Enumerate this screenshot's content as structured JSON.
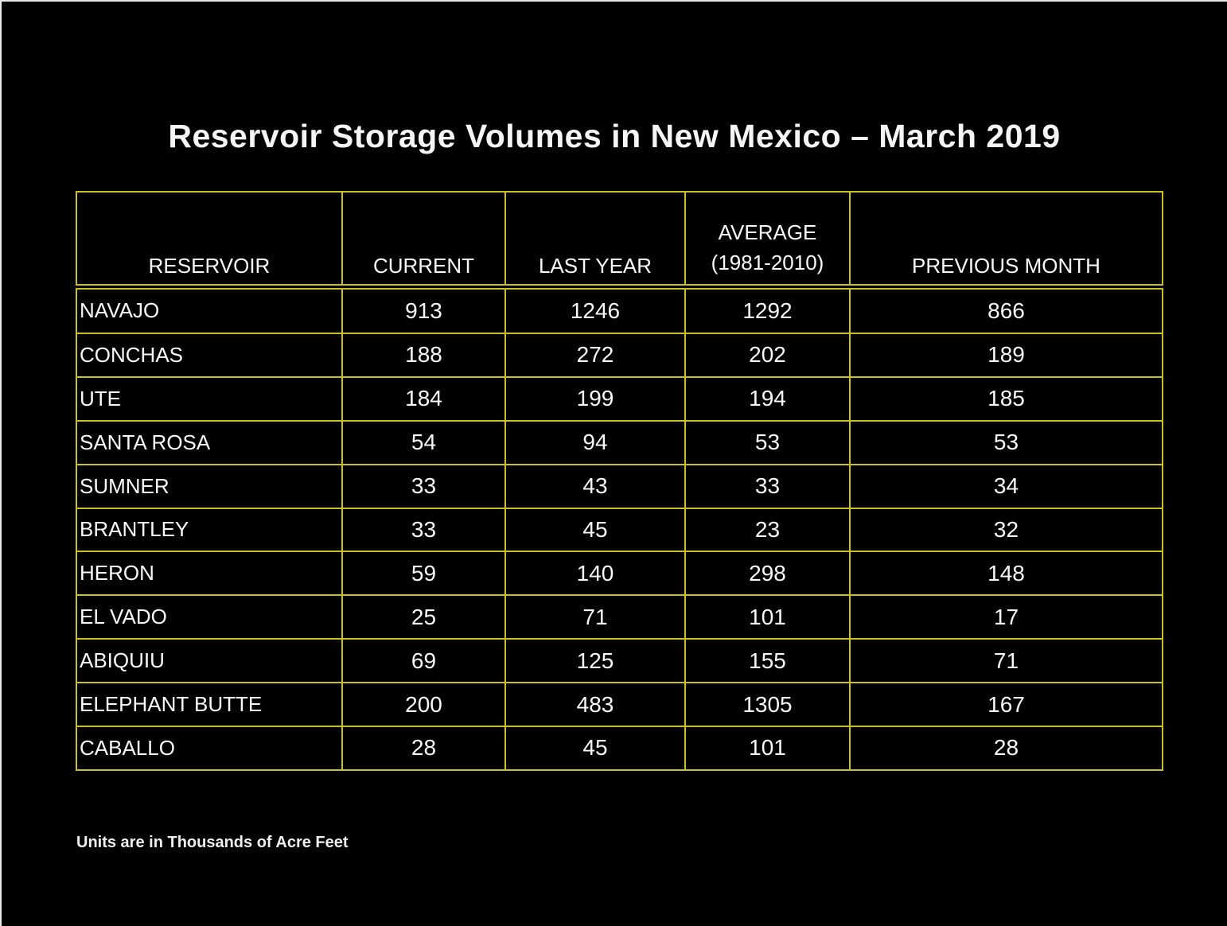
{
  "title": "Reservoir Storage Volumes in New Mexico – March 2019",
  "footnote": "Units are in Thousands of Acre Feet",
  "colors": {
    "background": "#000000",
    "text": "#fafafa",
    "table_border": "#c9c121"
  },
  "header": {
    "reservoir": "RESERVOIR",
    "current": "CURRENT",
    "last_year": "LAST YEAR",
    "average_line1": "AVERAGE",
    "average_line2": "(1981-2010)",
    "previous_month": "PREVIOUS MONTH"
  },
  "chart_data": {
    "type": "table",
    "title": "Reservoir Storage Volumes in New Mexico – March 2019",
    "columns": [
      "RESERVOIR",
      "CURRENT",
      "LAST YEAR",
      "AVERAGE (1981-2010)",
      "PREVIOUS MONTH"
    ],
    "rows": [
      [
        "NAVAJO",
        913,
        1246,
        1292,
        866
      ],
      [
        "CONCHAS",
        188,
        272,
        202,
        189
      ],
      [
        "UTE",
        184,
        199,
        194,
        185
      ],
      [
        "SANTA ROSA",
        54,
        94,
        53,
        53
      ],
      [
        "SUMNER",
        33,
        43,
        33,
        34
      ],
      [
        "BRANTLEY",
        33,
        45,
        23,
        32
      ],
      [
        "HERON",
        59,
        140,
        298,
        148
      ],
      [
        "EL VADO",
        25,
        71,
        101,
        17
      ],
      [
        "ABIQUIU",
        69,
        125,
        155,
        71
      ],
      [
        "ELEPHANT BUTTE",
        200,
        483,
        1305,
        167
      ],
      [
        "CABALLO",
        28,
        45,
        101,
        28
      ]
    ],
    "note": "Units are in Thousands of Acre Feet",
    "layout": {
      "grid": "on",
      "units": "thousands of acre feet",
      "background": "#000000",
      "grid_color": "#c9c121"
    }
  }
}
